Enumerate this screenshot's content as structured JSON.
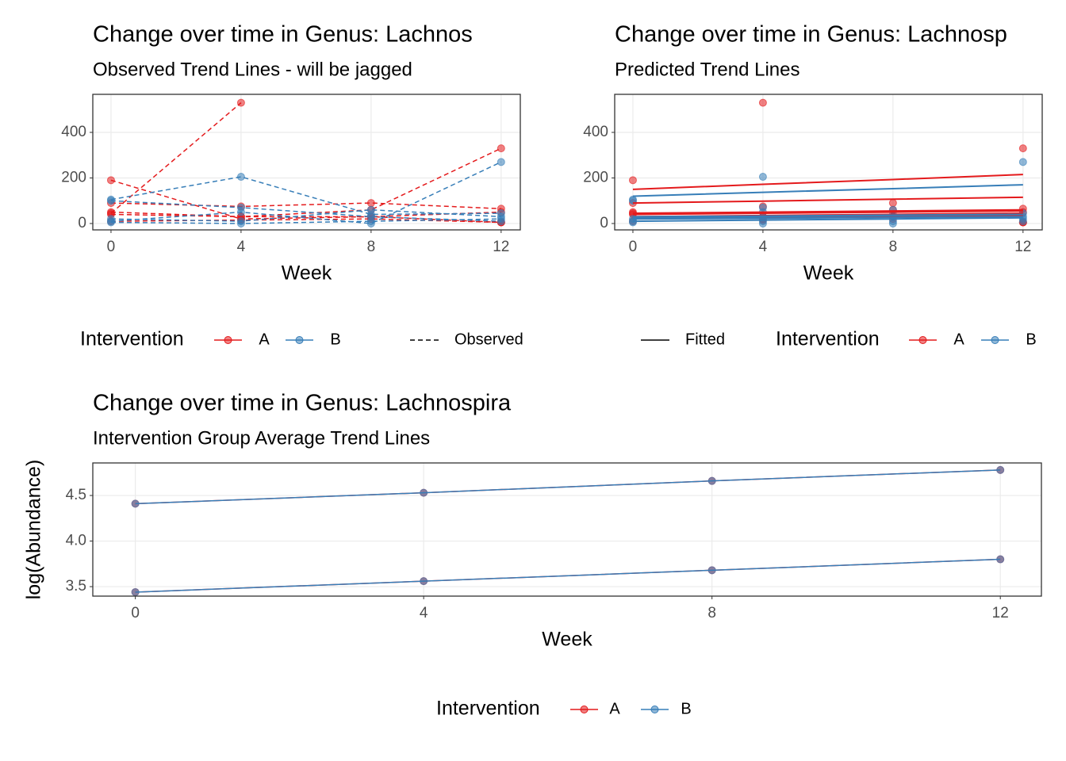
{
  "chart_data": [
    {
      "type": "line",
      "title": "Change over time in Genus: Lachnos",
      "subtitle": "Observed Trend Lines - will be jagged",
      "x_label": "Week",
      "legend_title": "Intervention",
      "linetype_label": "Observed",
      "line_style": "dashed",
      "x": [
        0,
        4,
        8,
        12
      ],
      "xlim": [
        -0.56,
        12.59
      ],
      "xticks": [
        0,
        4,
        8,
        12
      ],
      "ylim": [
        -28,
        567
      ],
      "yticks": [
        0,
        200,
        400
      ],
      "grid": true,
      "series": [
        {
          "name": "A",
          "color": "#E41A1C",
          "values": [
            190,
            20,
            30,
            5
          ]
        },
        {
          "name": "A",
          "color": "#E41A1C",
          "values": [
            45,
            530,
            null,
            5
          ]
        },
        {
          "name": "A",
          "color": "#E41A1C",
          "values": [
            40,
            30,
            60,
            330
          ]
        },
        {
          "name": "A",
          "color": "#E41A1C",
          "values": [
            90,
            75,
            90,
            65
          ]
        },
        {
          "name": "A",
          "color": "#E41A1C",
          "values": [
            50,
            30,
            30,
            50
          ]
        },
        {
          "name": "A",
          "color": "#E41A1C",
          "values": [
            10,
            15,
            20,
            5
          ]
        },
        {
          "name": "B",
          "color": "#377EB8",
          "values": [
            105,
            205,
            40,
            45
          ]
        },
        {
          "name": "B",
          "color": "#377EB8",
          "values": [
            10,
            50,
            0,
            270
          ]
        },
        {
          "name": "B",
          "color": "#377EB8",
          "values": [
            20,
            10,
            60,
            30
          ]
        },
        {
          "name": "B",
          "color": "#377EB8",
          "values": [
            5,
            0,
            10,
            20
          ]
        },
        {
          "name": "B",
          "color": "#377EB8",
          "values": [
            100,
            70,
            30,
            10
          ]
        }
      ]
    },
    {
      "type": "line",
      "title": "Change over time in Genus: Lachnosp",
      "subtitle": "Predicted Trend Lines",
      "x_label": "Week",
      "legend_title": "Intervention",
      "linetype_label": "Fitted",
      "line_style": "solid",
      "x": [
        0,
        4,
        8,
        12
      ],
      "xlim": [
        -0.56,
        12.59
      ],
      "xticks": [
        0,
        4,
        8,
        12
      ],
      "ylim": [
        -28,
        567
      ],
      "yticks": [
        0,
        200,
        400
      ],
      "grid": true,
      "series": [
        {
          "name": "A",
          "color": "#E41A1C",
          "values": [
            190,
            20,
            30,
            5
          ]
        },
        {
          "name": "A",
          "color": "#E41A1C",
          "values": [
            45,
            530,
            null,
            5
          ]
        },
        {
          "name": "A",
          "color": "#E41A1C",
          "values": [
            40,
            30,
            60,
            330
          ]
        },
        {
          "name": "A",
          "color": "#E41A1C",
          "values": [
            90,
            75,
            90,
            65
          ]
        },
        {
          "name": "A",
          "color": "#E41A1C",
          "values": [
            50,
            30,
            30,
            50
          ]
        },
        {
          "name": "A",
          "color": "#E41A1C",
          "values": [
            10,
            15,
            20,
            5
          ]
        },
        {
          "name": "B",
          "color": "#377EB8",
          "values": [
            105,
            205,
            40,
            45
          ]
        },
        {
          "name": "B",
          "color": "#377EB8",
          "values": [
            10,
            50,
            0,
            270
          ]
        },
        {
          "name": "B",
          "color": "#377EB8",
          "values": [
            20,
            10,
            60,
            30
          ]
        },
        {
          "name": "B",
          "color": "#377EB8",
          "values": [
            5,
            0,
            10,
            20
          ]
        },
        {
          "name": "B",
          "color": "#377EB8",
          "values": [
            100,
            70,
            30,
            10
          ]
        }
      ],
      "fitted_series": [
        {
          "name": "A",
          "color": "#E41A1C",
          "values": [
            150,
            172,
            193,
            215
          ]
        },
        {
          "name": "A",
          "color": "#E41A1C",
          "values": [
            90,
            98,
            107,
            115
          ]
        },
        {
          "name": "A",
          "color": "#E41A1C",
          "values": [
            40,
            45,
            50,
            55
          ]
        },
        {
          "name": "A",
          "color": "#E41A1C",
          "values": [
            45,
            50,
            55,
            60
          ]
        },
        {
          "name": "A",
          "color": "#E41A1C",
          "values": [
            30,
            35,
            40,
            45
          ]
        },
        {
          "name": "A",
          "color": "#E41A1C",
          "values": [
            25,
            28,
            32,
            35
          ]
        },
        {
          "name": "B",
          "color": "#377EB8",
          "values": [
            120,
            137,
            153,
            170
          ]
        },
        {
          "name": "B",
          "color": "#377EB8",
          "values": [
            25,
            30,
            35,
            40
          ]
        },
        {
          "name": "B",
          "color": "#377EB8",
          "values": [
            20,
            23,
            27,
            30
          ]
        },
        {
          "name": "B",
          "color": "#377EB8",
          "values": [
            10,
            15,
            20,
            25
          ]
        },
        {
          "name": "B",
          "color": "#377EB8",
          "values": [
            30,
            33,
            37,
            40
          ]
        }
      ]
    },
    {
      "type": "line",
      "title": "Change over time in Genus: Lachnospira",
      "subtitle": "Intervention Group Average Trend Lines",
      "x_label": "Week",
      "y_label": "log(Abundance)",
      "legend_title": "Intervention",
      "line_style": "solid",
      "x": [
        0,
        4,
        8,
        12
      ],
      "xlim": [
        -0.59,
        12.57
      ],
      "xticks": [
        0,
        4,
        8,
        12
      ],
      "ylim": [
        3.396,
        4.857
      ],
      "yticks": [
        {
          "value": 3.5,
          "label": "3.5"
        },
        {
          "value": 4.0,
          "label": "4.0"
        },
        {
          "value": 4.5,
          "label": "4.5"
        }
      ],
      "grid": true,
      "series": [
        {
          "name": "A",
          "color": "#E41A1C",
          "values": [
            4.41,
            4.53,
            4.66,
            4.78
          ]
        },
        {
          "name": "A",
          "color": "#E41A1C",
          "values": [
            3.44,
            3.56,
            3.68,
            3.8
          ]
        },
        {
          "name": "B",
          "color": "#377EB8",
          "values": [
            4.41,
            4.53,
            4.66,
            4.78
          ]
        },
        {
          "name": "B",
          "color": "#377EB8",
          "values": [
            3.44,
            3.56,
            3.68,
            3.8
          ]
        }
      ]
    }
  ]
}
